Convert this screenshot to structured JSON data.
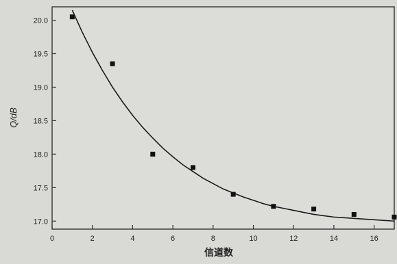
{
  "chart_data": {
    "type": "scatter",
    "title": "",
    "xlabel": "信道数",
    "ylabel": "Q/dB",
    "xlim": [
      0,
      17
    ],
    "ylim": [
      16.88,
      20.2
    ],
    "x_ticks": [
      0,
      2,
      4,
      6,
      8,
      10,
      12,
      14,
      16
    ],
    "y_ticks": [
      17.0,
      17.5,
      18.0,
      18.5,
      19.0,
      19.5,
      20.0
    ],
    "grid": false,
    "legend": "none",
    "series": [
      {
        "kind": "points",
        "marker": "square",
        "x": [
          1,
          3,
          5,
          7,
          9,
          11,
          13,
          15,
          17
        ],
        "y": [
          20.05,
          19.35,
          18.0,
          17.8,
          17.4,
          17.22,
          17.18,
          17.1,
          17.06
        ]
      },
      {
        "kind": "fit-curve",
        "x": [
          1,
          1.5,
          2,
          2.5,
          3,
          3.5,
          4,
          4.5,
          5,
          5.5,
          6,
          6.5,
          7,
          7.5,
          8,
          8.5,
          9,
          9.5,
          10,
          10.5,
          11,
          11.5,
          12,
          12.5,
          13,
          13.5,
          14,
          14.5,
          15,
          15.5,
          16,
          16.5,
          17
        ],
        "y": [
          20.15,
          19.82,
          19.52,
          19.25,
          19.0,
          18.78,
          18.58,
          18.4,
          18.24,
          18.09,
          17.96,
          17.84,
          17.74,
          17.64,
          17.56,
          17.48,
          17.42,
          17.36,
          17.31,
          17.26,
          17.22,
          17.19,
          17.16,
          17.13,
          17.1,
          17.08,
          17.06,
          17.05,
          17.04,
          17.03,
          17.02,
          17.01,
          17.0
        ]
      }
    ]
  }
}
